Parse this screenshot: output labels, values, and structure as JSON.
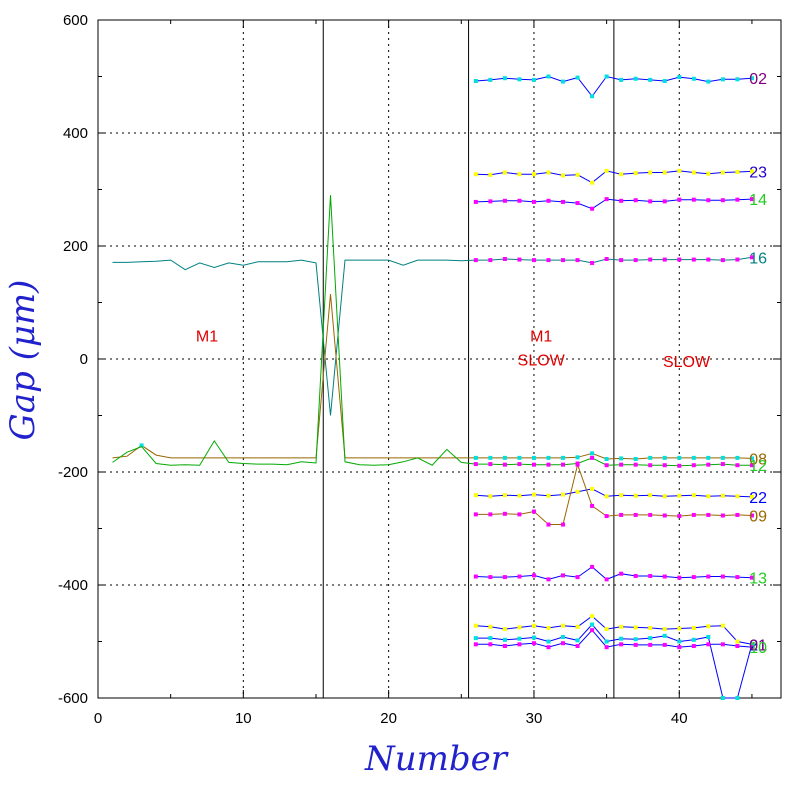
{
  "chart_data": {
    "type": "line",
    "xlabel": "Number",
    "ylabel": "Gap (μm)",
    "xlim": [
      0,
      47
    ],
    "ylim": [
      -600,
      600
    ],
    "x_ticks": [
      0,
      10,
      20,
      30,
      40
    ],
    "y_ticks": [
      -600,
      -400,
      -200,
      0,
      200,
      400,
      600
    ],
    "grid": "dotted",
    "vlines": [
      15.5,
      25.5,
      35.5
    ],
    "region_labels": [
      {
        "lines": [
          "M1"
        ],
        "x": 7.5,
        "y": 40
      },
      {
        "lines": [
          "M1",
          "SLOW"
        ],
        "x": 30.5,
        "y": 40
      },
      {
        "lines": [
          "SLOW"
        ],
        "x": 40.5,
        "y": -5
      }
    ],
    "series": [
      {
        "name": "02",
        "color": "#0000ff",
        "marker": "#00e0e0",
        "label_color": "#800080",
        "x": [
          26,
          27,
          28,
          29,
          30,
          31,
          32,
          33,
          34,
          35,
          36,
          37,
          38,
          39,
          40,
          41,
          42,
          43,
          44,
          45
        ],
        "y": [
          492,
          494,
          497,
          495,
          494,
          500,
          491,
          498,
          465,
          500,
          494,
          496,
          494,
          492,
          499,
          496,
          491,
          495,
          495,
          497
        ]
      },
      {
        "name": "23",
        "color": "#0000ff",
        "marker": "#ffff00",
        "label_color": "#2200cc",
        "x": [
          26,
          27,
          28,
          29,
          30,
          31,
          32,
          33,
          34,
          35,
          36,
          37,
          38,
          39,
          40,
          41,
          42,
          43,
          44,
          45
        ],
        "y": [
          327,
          326,
          330,
          327,
          327,
          330,
          325,
          326,
          312,
          333,
          327,
          329,
          330,
          330,
          333,
          330,
          328,
          330,
          331,
          332
        ]
      },
      {
        "name": "14",
        "color": "#0000ff",
        "marker": "#ff00ff",
        "label_color": "#22cc22",
        "x": [
          26,
          27,
          28,
          29,
          30,
          31,
          32,
          33,
          34,
          35,
          36,
          37,
          38,
          39,
          40,
          41,
          42,
          43,
          44,
          45
        ],
        "y": [
          278,
          279,
          280,
          280,
          278,
          280,
          278,
          276,
          266,
          283,
          280,
          281,
          279,
          279,
          282,
          282,
          281,
          281,
          282,
          283
        ]
      },
      {
        "name": "16",
        "color": "#008080",
        "marker": "#ff00ff",
        "label_color": "#008080",
        "x": [
          1,
          2,
          3,
          4,
          5,
          6,
          7,
          8,
          9,
          10,
          11,
          12,
          13,
          14,
          15,
          16,
          17,
          18,
          19,
          20,
          21,
          22,
          23,
          24,
          25,
          26,
          27,
          28,
          29,
          30,
          31,
          32,
          33,
          34,
          35,
          36,
          37,
          38,
          39,
          40,
          41,
          42,
          43,
          44,
          45
        ],
        "y": [
          171,
          171,
          172,
          173,
          175,
          158,
          170,
          162,
          170,
          166,
          172,
          172,
          172,
          175,
          170,
          -100,
          175,
          175,
          175,
          175,
          166,
          175,
          175,
          175,
          174,
          175,
          175,
          177,
          176,
          175,
          175,
          175,
          175,
          170,
          177,
          175,
          175,
          176,
          176,
          176,
          176,
          176,
          175,
          176,
          180
        ]
      },
      {
        "name": "08",
        "color": "#996600",
        "marker": "#00e0e0",
        "label_color": "#996600",
        "x": [
          1,
          2,
          3,
          4,
          5,
          6,
          7,
          8,
          9,
          10,
          11,
          12,
          13,
          14,
          15,
          16,
          17,
          18,
          19,
          20,
          21,
          22,
          23,
          24,
          25,
          26,
          27,
          28,
          29,
          30,
          31,
          32,
          33,
          34,
          35,
          36,
          37,
          38,
          39,
          40,
          41,
          42,
          43,
          44,
          45
        ],
        "y": [
          -175,
          -172,
          -153,
          -170,
          -175,
          -175,
          -175,
          -175,
          -175,
          -175,
          -175,
          -175,
          -175,
          -175,
          -175,
          115,
          -175,
          -175,
          -175,
          -175,
          -175,
          -175,
          -175,
          -175,
          -175,
          -175,
          -175,
          -175,
          -175,
          -175,
          -175,
          -175,
          -174,
          -167,
          -177,
          -176,
          -177,
          -175,
          -175,
          -175,
          -175,
          -175,
          -175,
          -175,
          -176
        ]
      },
      {
        "name": "12",
        "color": "#00aa00",
        "marker": "#ff00ff",
        "label_color": "#22cc22",
        "x": [
          1,
          2,
          3,
          4,
          5,
          6,
          7,
          8,
          9,
          10,
          11,
          12,
          13,
          14,
          15,
          16,
          17,
          18,
          19,
          20,
          21,
          22,
          23,
          24,
          25,
          26,
          27,
          28,
          29,
          30,
          31,
          32,
          33,
          34,
          35,
          36,
          37,
          38,
          39,
          40,
          41,
          42,
          43,
          44,
          45
        ],
        "y": [
          -183,
          -165,
          -155,
          -185,
          -188,
          -187,
          -188,
          -145,
          -183,
          -185,
          -186,
          -186,
          -187,
          -182,
          -184,
          290,
          -182,
          -187,
          -188,
          -187,
          -182,
          -175,
          -188,
          -160,
          -183,
          -186,
          -186,
          -187,
          -186,
          -187,
          -187,
          -187,
          -185,
          -175,
          -188,
          -187,
          -187,
          -188,
          -188,
          -189,
          -188,
          -187,
          -186,
          -188,
          -188
        ]
      },
      {
        "name": "22",
        "color": "#0000ff",
        "marker": "#ffff00",
        "label_color": "#0000ff",
        "x": [
          26,
          27,
          28,
          29,
          30,
          31,
          32,
          33,
          34,
          35,
          36,
          37,
          38,
          39,
          40,
          41,
          42,
          43,
          44,
          45
        ],
        "y": [
          -241,
          -243,
          -241,
          -242,
          -240,
          -242,
          -240,
          -235,
          -230,
          -243,
          -241,
          -242,
          -241,
          -243,
          -242,
          -241,
          -243,
          -242,
          -243,
          -244
        ]
      },
      {
        "name": "09",
        "color": "#996600",
        "marker": "#ff00ff",
        "label_color": "#996600",
        "x": [
          26,
          27,
          28,
          29,
          30,
          31,
          32,
          33,
          34,
          35,
          36,
          37,
          38,
          39,
          40,
          41,
          42,
          43,
          44,
          45
        ],
        "y": [
          -275,
          -275,
          -274,
          -275,
          -270,
          -293,
          -293,
          -187,
          -260,
          -278,
          -276,
          -276,
          -276,
          -277,
          -278,
          -276,
          -276,
          -277,
          -276,
          -277
        ]
      },
      {
        "name": "13",
        "color": "#0000ff",
        "marker": "#ff00ff",
        "label_color": "#22cc22",
        "x": [
          26,
          27,
          28,
          29,
          30,
          31,
          32,
          33,
          34,
          35,
          36,
          37,
          38,
          39,
          40,
          41,
          42,
          43,
          44,
          45
        ],
        "y": [
          -385,
          -386,
          -386,
          -385,
          -383,
          -390,
          -383,
          -386,
          -368,
          -390,
          -380,
          -384,
          -384,
          -385,
          -387,
          -386,
          -385,
          -385,
          -386,
          -387
        ]
      },
      {
        "name": "21",
        "color": "#0000ff",
        "marker": "#ffff00",
        "label_color": "#0000ff",
        "x": [
          26,
          27,
          28,
          29,
          30,
          31,
          32,
          33,
          34,
          35,
          36,
          37,
          38,
          39,
          40,
          41,
          42,
          43,
          44,
          45
        ],
        "y": [
          -472,
          -474,
          -478,
          -475,
          -472,
          -476,
          -472,
          -474,
          -455,
          -478,
          -474,
          -475,
          -476,
          -478,
          -477,
          -476,
          -473,
          -472,
          -500,
          -505
        ]
      },
      {
        "name": "01",
        "color": "#0000ff",
        "marker": "#00e0e0",
        "label_color": "#800080",
        "x": [
          26,
          27,
          28,
          29,
          30,
          31,
          32,
          33,
          34,
          35,
          36,
          37,
          38,
          39,
          40,
          41,
          42,
          43,
          44,
          45
        ],
        "y": [
          -494,
          -494,
          -497,
          -495,
          -493,
          -500,
          -492,
          -498,
          -470,
          -500,
          -495,
          -496,
          -494,
          -490,
          -500,
          -497,
          -492,
          -600,
          -600,
          -505
        ]
      },
      {
        "name": "10",
        "color": "#0000ff",
        "marker": "#ff00ff",
        "label_color": "#22cc22",
        "x": [
          26,
          27,
          28,
          29,
          30,
          31,
          32,
          33,
          34,
          35,
          36,
          37,
          38,
          39,
          40,
          41,
          42,
          43,
          44,
          45
        ],
        "y": [
          -505,
          -505,
          -508,
          -505,
          -503,
          -510,
          -503,
          -508,
          -480,
          -510,
          -505,
          -506,
          -506,
          -506,
          -510,
          -508,
          -505,
          -505,
          -508,
          -510
        ]
      }
    ]
  }
}
